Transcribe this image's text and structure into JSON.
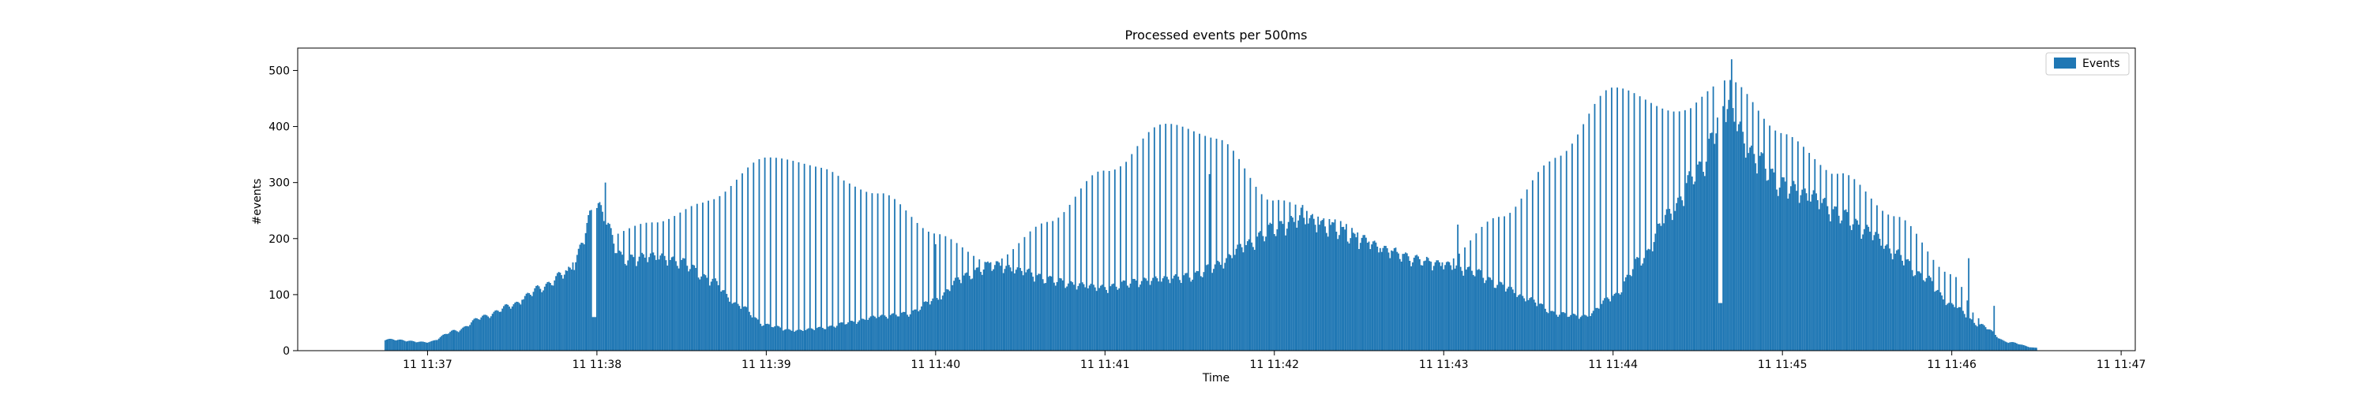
{
  "chart_data": {
    "type": "bar",
    "title": "Processed events per 500ms",
    "xlabel": "Time",
    "ylabel": "#events",
    "ylim": [
      0,
      540
    ],
    "yticks": [
      0,
      100,
      200,
      300,
      400,
      500
    ],
    "xlim": [
      "11 11:36:14",
      "11 11:47:05"
    ],
    "xticks": [
      "11 11:37",
      "11 11:38",
      "11 11:39",
      "11 11:40",
      "11 11:41",
      "11 11:42",
      "11 11:43",
      "11 11:44",
      "11 11:45",
      "11 11:46",
      "11 11:47"
    ],
    "bin_interval": "500ms",
    "grid": false,
    "legend": {
      "position": "top-right",
      "entries": [
        "Events"
      ]
    },
    "series": [
      {
        "name": "Events",
        "color": "#1f77b4",
        "points": [
          [
            "11 11:36:45",
            20
          ],
          [
            "11 11:37:00",
            15
          ],
          [
            "11 11:37:10",
            35
          ],
          [
            "11 11:37:20",
            60
          ],
          [
            "11 11:37:30",
            80
          ],
          [
            "11 11:37:40",
            110
          ],
          [
            "11 11:37:50",
            140
          ],
          [
            "11 11:38:00",
            250
          ],
          [
            "11 11:38:10",
            160
          ],
          [
            "11 11:38:20",
            165
          ],
          [
            "11 11:38:30",
            155
          ],
          [
            "11 11:38:40",
            125
          ],
          [
            "11 11:38:50",
            80
          ],
          [
            "11 11:39:00",
            45
          ],
          [
            "11 11:39:10",
            35
          ],
          [
            "11 11:39:20",
            40
          ],
          [
            "11 11:39:30",
            50
          ],
          [
            "11 11:39:40",
            60
          ],
          [
            "11 11:39:50",
            65
          ],
          [
            "11 11:40:00",
            90
          ],
          [
            "11 11:40:10",
            130
          ],
          [
            "11 11:40:20",
            150
          ],
          [
            "11 11:40:30",
            140
          ],
          [
            "11 11:40:40",
            125
          ],
          [
            "11 11:40:50",
            115
          ],
          [
            "11 11:41:00",
            110
          ],
          [
            "11 11:41:10",
            120
          ],
          [
            "11 11:41:20",
            125
          ],
          [
            "11 11:41:30",
            130
          ],
          [
            "11 11:41:40",
            150
          ],
          [
            "11 11:41:50",
            185
          ],
          [
            "11 11:42:00",
            215
          ],
          [
            "11 11:42:10",
            230
          ],
          [
            "11 11:42:20",
            215
          ],
          [
            "11 11:42:30",
            195
          ],
          [
            "11 11:42:40",
            175
          ],
          [
            "11 11:42:50",
            160
          ],
          [
            "11 11:43:00",
            150
          ],
          [
            "11 11:43:10",
            140
          ],
          [
            "11 11:43:20",
            115
          ],
          [
            "11 11:43:30",
            90
          ],
          [
            "11 11:43:40",
            65
          ],
          [
            "11 11:43:50",
            60
          ],
          [
            "11 11:44:00",
            95
          ],
          [
            "11 11:44:10",
            160
          ],
          [
            "11 11:44:20",
            240
          ],
          [
            "11 11:44:30",
            315
          ],
          [
            "11 11:44:40",
            430
          ],
          [
            "11 11:44:50",
            340
          ],
          [
            "11 11:45:00",
            290
          ],
          [
            "11 11:45:10",
            270
          ],
          [
            "11 11:45:20",
            240
          ],
          [
            "11 11:45:30",
            210
          ],
          [
            "11 11:45:40",
            170
          ],
          [
            "11 11:45:50",
            130
          ],
          [
            "11 11:46:00",
            80
          ],
          [
            "11 11:46:10",
            45
          ],
          [
            "11 11:46:20",
            15
          ],
          [
            "11 11:46:30",
            5
          ]
        ],
        "pulse_points": [
          [
            "11 11:37:20",
            50
          ],
          [
            "11 11:37:40",
            105
          ],
          [
            "11 11:38:00",
            200
          ],
          [
            "11 11:38:20",
            230
          ],
          [
            "11 11:38:40",
            280
          ],
          [
            "11 11:39:00",
            345
          ],
          [
            "11 11:39:20",
            335
          ],
          [
            "11 11:39:40",
            285
          ],
          [
            "11 11:40:00",
            210
          ],
          [
            "11 11:40:20",
            165
          ],
          [
            "11 11:40:40",
            230
          ],
          [
            "11 11:41:00",
            330
          ],
          [
            "11 11:41:20",
            410
          ],
          [
            "11 11:41:40",
            380
          ],
          [
            "11 11:42:00",
            280
          ],
          [
            "11 11:42:20",
            235
          ],
          [
            "11 11:42:40",
            185
          ],
          [
            "11 11:43:00",
            160
          ],
          [
            "11 11:43:20",
            240
          ],
          [
            "11 11:43:40",
            360
          ],
          [
            "11 11:44:00",
            470
          ],
          [
            "11 11:44:20",
            440
          ],
          [
            "11 11:44:40",
            490
          ],
          [
            "11 11:45:00",
            390
          ],
          [
            "11 11:45:20",
            330
          ],
          [
            "11 11:45:40",
            240
          ],
          [
            "11 11:46:00",
            140
          ],
          [
            "11 11:46:10",
            60
          ]
        ],
        "spikes": [
          [
            "11 11:38:03",
            300
          ],
          [
            "11 11:40:00",
            190
          ],
          [
            "11 11:41:37",
            315
          ],
          [
            "11 11:42:10",
            260
          ],
          [
            "11 11:43:05",
            225
          ],
          [
            "11 11:44:42",
            520
          ],
          [
            "11 11:46:06",
            165
          ],
          [
            "11 11:46:15",
            80
          ]
        ],
        "dips": [
          [
            "11 11:37:59",
            60
          ],
          [
            "11 11:44:38",
            85
          ]
        ]
      }
    ]
  }
}
